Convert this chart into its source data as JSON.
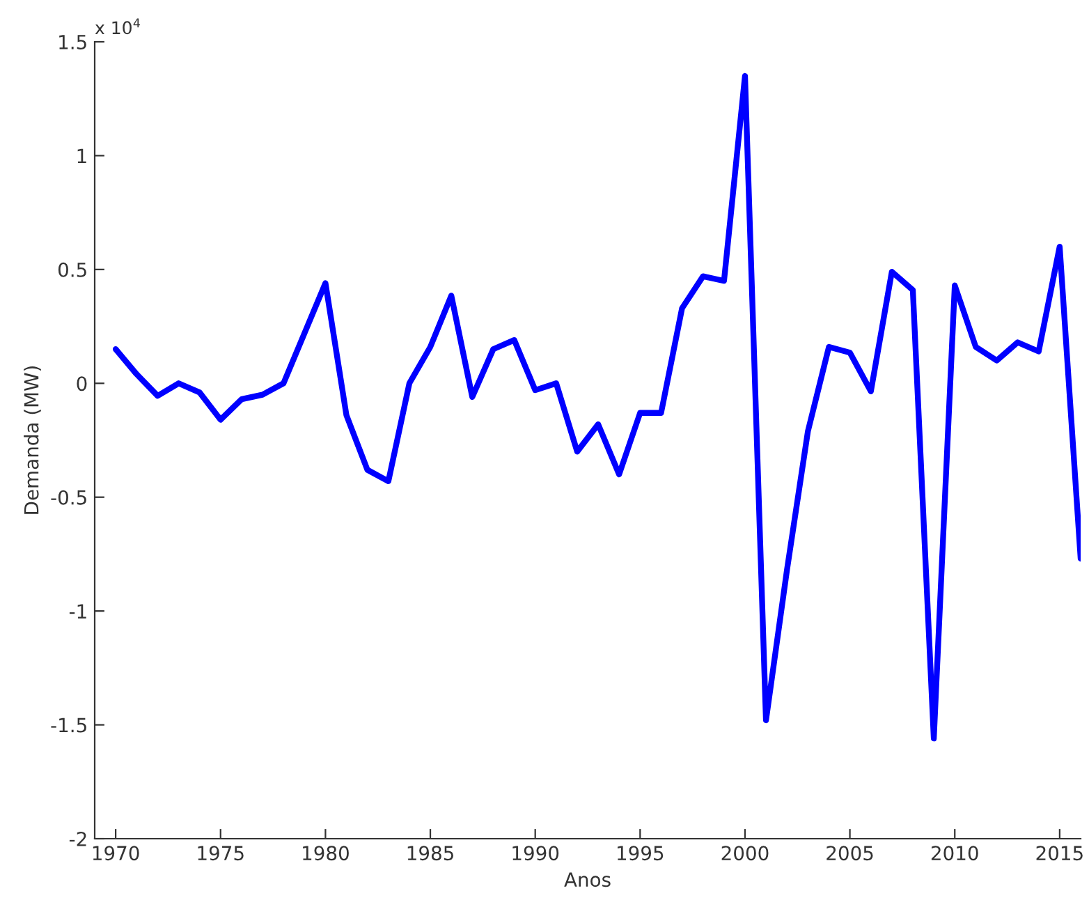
{
  "chart_data": {
    "type": "line",
    "xlabel": "Anos",
    "ylabel": "Demanda (MW)",
    "annotations": [
      "x 10$^{4}$"
    ],
    "x": [
      1970,
      1971,
      1972,
      1973,
      1974,
      1975,
      1976,
      1977,
      1978,
      1979,
      1980,
      1981,
      1982,
      1983,
      1984,
      1985,
      1986,
      1987,
      1988,
      1989,
      1990,
      1991,
      1992,
      1993,
      1994,
      1995,
      1996,
      1997,
      1998,
      1999,
      2000,
      2001,
      2002,
      2003,
      2004,
      2005,
      2006,
      2007,
      2008,
      2009,
      2010,
      2011,
      2012,
      2013,
      2014,
      2015,
      2016
    ],
    "series": [
      {
        "color": "#0000ff",
        "values": [
          0.15,
          0.04,
          -0.055,
          0,
          -0.04,
          -0.16,
          -0.07,
          -0.05,
          0,
          0.22,
          0.44,
          -0.14,
          -0.38,
          -0.43,
          0,
          0.16,
          0.385,
          -0.06,
          0.15,
          0.19,
          -0.03,
          0,
          -0.3,
          -0.18,
          -0.4,
          -0.13,
          -0.13,
          0.33,
          0.47,
          0.45,
          1.35,
          -1.48,
          -0.82,
          -0.21,
          0.16,
          0.135,
          -0.035,
          0.49,
          0.41,
          -1.56,
          0.43,
          0.16,
          0.1,
          0.18,
          0.14,
          0.6,
          -0.77
        ]
      }
    ],
    "xlim": [
      1969,
      2016
    ],
    "xticks": [
      1970,
      1975,
      1980,
      1985,
      1990,
      1995,
      2000,
      2005,
      2010,
      2015
    ],
    "ylim": [
      -2,
      1.5
    ],
    "yticks": [
      -2,
      -1.5,
      -1,
      -0.5,
      0,
      0.5,
      1,
      1.5
    ],
    "grid": false,
    "marker": "none",
    "line_style": "solid"
  }
}
